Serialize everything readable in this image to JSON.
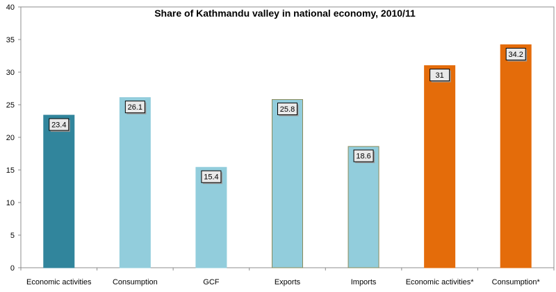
{
  "chart_data": {
    "type": "bar",
    "title": "Share of Kathmandu valley in national economy, 2010/11",
    "categories": [
      "Economic activities",
      "Consumption",
      "GCF",
      "Exports",
      "Imports",
      "Economic activities*",
      "Consumption*"
    ],
    "values": [
      23.4,
      26.1,
      15.4,
      25.8,
      18.6,
      31,
      34.2
    ],
    "data_labels": [
      "23.4",
      "26.1",
      "15.4",
      "25.8",
      "18.6",
      "31",
      "34.2"
    ],
    "bar_colors": [
      "#31859C",
      "#92CDDC",
      "#92CDDC",
      "#92CDDC",
      "#92CDDC",
      "#E46C0A",
      "#E46C0A"
    ],
    "bar_outlines": [
      "#31859C",
      "#92CDDC",
      "#92CDDC",
      "#8B8B5A",
      "#8B8B5A",
      "#E46C0A",
      "#E46C0A"
    ],
    "xlabel": "",
    "ylabel": "",
    "ylim": [
      0,
      40
    ],
    "yticks": [
      0,
      5,
      10,
      15,
      20,
      25,
      30,
      35,
      40
    ],
    "grid": false,
    "legend": "none"
  }
}
